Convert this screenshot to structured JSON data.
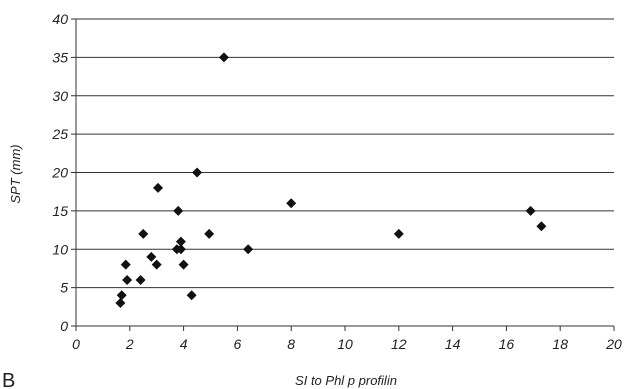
{
  "panel_label": "B",
  "chart_data": {
    "type": "scatter",
    "xlabel": "SI to Phl p profilin",
    "ylabel": "SPT (mm)",
    "xlim": [
      0,
      20
    ],
    "ylim": [
      0,
      40
    ],
    "xticks": [
      0,
      2,
      4,
      6,
      8,
      10,
      12,
      14,
      16,
      18,
      20
    ],
    "yticks": [
      0,
      5,
      10,
      15,
      20,
      25,
      30,
      35,
      40
    ],
    "grid": "horizontal",
    "marker": "diamond",
    "marker_color": "#111111",
    "points": [
      {
        "x": 1.65,
        "y": 3
      },
      {
        "x": 1.7,
        "y": 4
      },
      {
        "x": 1.85,
        "y": 8
      },
      {
        "x": 1.9,
        "y": 6
      },
      {
        "x": 2.4,
        "y": 6
      },
      {
        "x": 2.5,
        "y": 12
      },
      {
        "x": 2.8,
        "y": 9
      },
      {
        "x": 3.0,
        "y": 8
      },
      {
        "x": 3.05,
        "y": 18
      },
      {
        "x": 3.75,
        "y": 10
      },
      {
        "x": 3.8,
        "y": 15
      },
      {
        "x": 3.9,
        "y": 10
      },
      {
        "x": 3.9,
        "y": 11
      },
      {
        "x": 4.0,
        "y": 8
      },
      {
        "x": 4.3,
        "y": 4
      },
      {
        "x": 4.5,
        "y": 20
      },
      {
        "x": 4.95,
        "y": 12
      },
      {
        "x": 5.5,
        "y": 35
      },
      {
        "x": 6.4,
        "y": 10
      },
      {
        "x": 8.0,
        "y": 16
      },
      {
        "x": 12.0,
        "y": 12
      },
      {
        "x": 16.9,
        "y": 15
      },
      {
        "x": 17.3,
        "y": 13
      }
    ]
  }
}
